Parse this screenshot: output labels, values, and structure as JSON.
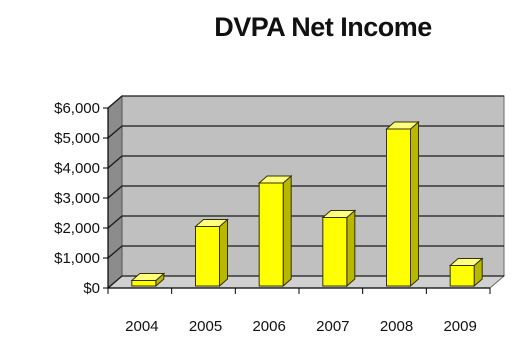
{
  "chart_data": {
    "type": "bar",
    "title": "DVPA Net Income",
    "xlabel": "",
    "ylabel": "",
    "categories": [
      "2004",
      "2005",
      "2006",
      "2007",
      "2008",
      "2009"
    ],
    "values": [
      250,
      2050,
      3500,
      2350,
      5300,
      750
    ],
    "ylim": [
      0,
      6000
    ],
    "yticks": [
      0,
      1000,
      2000,
      3000,
      4000,
      5000,
      6000
    ],
    "ytick_labels": [
      "$0",
      "$1,000",
      "$2,000",
      "$3,000",
      "$4,000",
      "$5,000",
      "$6,000"
    ],
    "grid": true,
    "legend": "none",
    "style": "3d",
    "colors": {
      "bar_front": "#ffff00",
      "bar_side": "#b8b800",
      "bar_top": "#ffff80",
      "wall": "#c0c0c0",
      "wall_side": "#8c8c8c",
      "floor": "#d0d0d0"
    }
  }
}
